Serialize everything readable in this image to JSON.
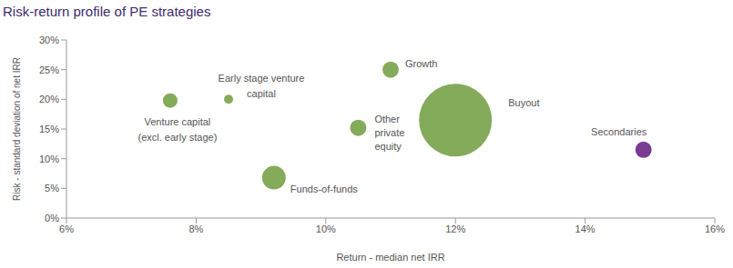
{
  "chart_data": {
    "type": "scatter",
    "title": "Risk-return profile of PE strategies",
    "x_label": "Return - median net IRR",
    "y_label": "Risk - standard deviation of net IRR",
    "labels": [
      "Venture capital\n(excl. early stage)",
      "Early stage venture\ncapital",
      "Growth",
      "Other\nprivate\nequity",
      "Funds-of-funds",
      "Buyout",
      "Secondaries"
    ],
    "x": [
      7.6,
      8.5,
      11.0,
      10.5,
      9.2,
      12.0,
      14.9
    ],
    "values": [
      19.8,
      20.0,
      25.0,
      15.2,
      6.8,
      16.5,
      11.5
    ],
    "sizes": [
      64,
      25,
      81,
      81,
      169,
      1600,
      81
    ],
    "colors": [
      "#84ab5a",
      "#84ab5a",
      "#84ab5a",
      "#84ab5a",
      "#84ab5a",
      "#84ab5a",
      "#7a3b93"
    ],
    "xlim": [
      6,
      16
    ],
    "ylim": [
      0,
      30
    ],
    "xticks": [
      {
        "value": 6,
        "label": "6%"
      },
      {
        "value": 8,
        "label": "8%"
      },
      {
        "value": 10,
        "label": "10%"
      },
      {
        "value": 12,
        "label": "12%"
      },
      {
        "value": 14,
        "label": "14%"
      },
      {
        "value": 16,
        "label": "16%"
      }
    ],
    "yticks": [
      {
        "value": 0,
        "label": "0%"
      },
      {
        "value": 5,
        "label": "5%"
      },
      {
        "value": 10,
        "label": "10%"
      },
      {
        "value": 15,
        "label": "15%"
      },
      {
        "value": 20,
        "label": "20%"
      },
      {
        "value": 25,
        "label": "25%"
      },
      {
        "value": 30,
        "label": "30%"
      }
    ],
    "grid": false
  }
}
